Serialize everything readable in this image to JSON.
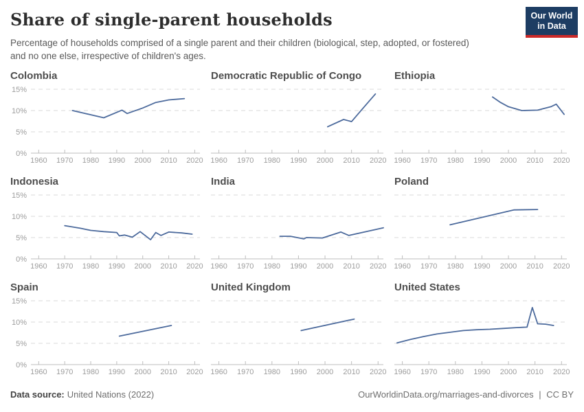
{
  "header": {
    "title": "Share of single-parent households",
    "subtitle_lines": [
      "Percentage of households comprised of a single parent and their children (biological, step, adopted, or fostered)",
      "and no one else, irrespective of children's ages."
    ],
    "logo_line1": "Our World",
    "logo_line2": "in Data"
  },
  "colors": {
    "line": "#4c6a9c",
    "grid": "#dadada",
    "axis_line": "#bdbdbd",
    "tick_text": "#9c9c9c",
    "logo_bg": "#1d3d63",
    "logo_stripe": "#cc2a29"
  },
  "axis": {
    "x_domain": [
      1957,
      2022
    ],
    "y_domain": [
      0,
      15
    ],
    "x_ticks": [
      1960,
      1970,
      1980,
      1990,
      2000,
      2010,
      2020
    ],
    "y_ticks": [
      0,
      5,
      10,
      15
    ],
    "y_tick_labels": [
      "0%",
      "5%",
      "10%",
      "15%"
    ],
    "unit": "%",
    "grid": "dashed horizontal"
  },
  "chart_data": [
    {
      "type": "line",
      "title": "Colombia",
      "y_axis_labels": true,
      "x": [
        1973,
        1985,
        1992,
        1994,
        2000,
        2005,
        2010,
        2016
      ],
      "y": [
        10.0,
        8.3,
        10.1,
        9.3,
        10.6,
        11.9,
        12.5,
        12.8
      ]
    },
    {
      "type": "line",
      "title": "Democratic Republic of Congo",
      "y_axis_labels": false,
      "x": [
        2001,
        2007,
        2010,
        2014,
        2019
      ],
      "y": [
        6.2,
        7.9,
        7.4,
        10.3,
        13.9
      ]
    },
    {
      "type": "line",
      "title": "Ethiopia",
      "y_axis_labels": false,
      "x": [
        1994,
        1997,
        2000,
        2005,
        2011,
        2016,
        2018,
        2021
      ],
      "y": [
        13.2,
        11.9,
        10.9,
        10.0,
        10.1,
        10.9,
        11.5,
        9.1
      ]
    },
    {
      "type": "line",
      "title": "Indonesia",
      "y_axis_labels": true,
      "x": [
        1970,
        1976,
        1980,
        1985,
        1990,
        1991,
        1993,
        1996,
        1999,
        2003,
        2005,
        2007,
        2010,
        2015,
        2019
      ],
      "y": [
        7.8,
        7.2,
        6.7,
        6.4,
        6.2,
        5.4,
        5.6,
        5.1,
        6.4,
        4.5,
        6.2,
        5.5,
        6.3,
        6.1,
        5.8
      ]
    },
    {
      "type": "line",
      "title": "India",
      "y_axis_labels": false,
      "x": [
        1983,
        1987,
        1992,
        1993,
        1999,
        2006,
        2009,
        2022
      ],
      "y": [
        5.3,
        5.3,
        4.7,
        5.0,
        4.9,
        6.3,
        5.5,
        7.3
      ]
    },
    {
      "type": "line",
      "title": "Poland",
      "y_axis_labels": false,
      "x": [
        1978,
        2002,
        2011
      ],
      "y": [
        8.0,
        11.5,
        11.6
      ]
    },
    {
      "type": "line",
      "title": "Spain",
      "y_axis_labels": true,
      "x": [
        1991,
        2011
      ],
      "y": [
        6.7,
        9.2
      ]
    },
    {
      "type": "line",
      "title": "United Kingdom",
      "y_axis_labels": false,
      "x": [
        1991,
        2011
      ],
      "y": [
        8.0,
        10.7
      ]
    },
    {
      "type": "line",
      "title": "United States",
      "y_axis_labels": false,
      "x": [
        1958,
        1963,
        1968,
        1973,
        1978,
        1983,
        1988,
        1993,
        1998,
        2003,
        2007,
        2009,
        2011,
        2014,
        2017
      ],
      "y": [
        5.1,
        5.9,
        6.6,
        7.2,
        7.6,
        8.0,
        8.2,
        8.3,
        8.5,
        8.7,
        8.8,
        13.4,
        9.6,
        9.5,
        9.2
      ]
    }
  ],
  "footer": {
    "source_label": "Data source:",
    "source_value": "United Nations (2022)",
    "link": "OurWorldinData.org/marriages-and-divorces",
    "separator": "|",
    "license": "CC BY"
  }
}
